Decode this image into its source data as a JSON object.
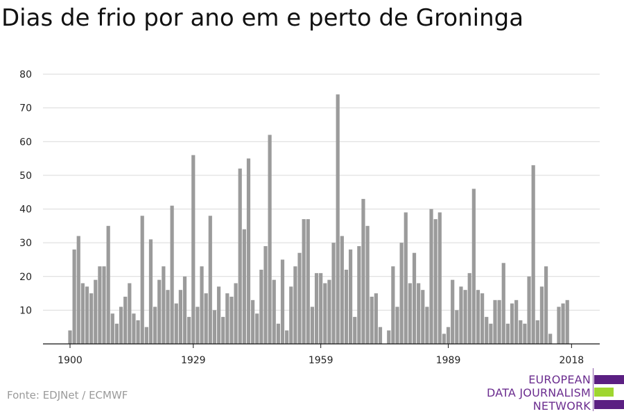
{
  "title": "Dias de frio por ano em e perto de Groninga",
  "source": "Fonte: EDJNet / ECMWF",
  "logo": {
    "lines": [
      "EUROPEAN",
      "DATA JOURNALISM",
      "NETWORK"
    ],
    "text_color": "#6b2d8f",
    "bar_colors": [
      "#5b1f82",
      "#9fd630",
      "#5b1f82"
    ]
  },
  "chart_data": {
    "type": "bar",
    "title": "Dias de frio por ano em e perto de Groninga",
    "xlabel": "",
    "ylabel": "",
    "x_start": 1900,
    "x_end": 2018,
    "x_ticks": [
      "1900",
      "1929",
      "1959",
      "1989",
      "2018"
    ],
    "y_ticks": [
      "10",
      "20",
      "30",
      "40",
      "50",
      "60",
      "70",
      "80"
    ],
    "ylim": [
      0,
      80
    ],
    "grid": true,
    "bar_color": "#9b9b9b",
    "values": [
      4,
      28,
      32,
      18,
      17,
      15,
      19,
      23,
      23,
      35,
      9,
      6,
      11,
      14,
      18,
      9,
      7,
      38,
      5,
      31,
      11,
      19,
      23,
      16,
      41,
      12,
      16,
      20,
      8,
      56,
      11,
      23,
      15,
      38,
      10,
      17,
      8,
      15,
      14,
      18,
      52,
      34,
      55,
      13,
      9,
      22,
      29,
      62,
      19,
      6,
      25,
      4,
      17,
      23,
      27,
      37,
      37,
      11,
      21,
      21,
      18,
      19,
      30,
      74,
      32,
      22,
      28,
      8,
      29,
      43,
      35,
      14,
      15,
      5,
      0,
      4,
      23,
      11,
      30,
      39,
      18,
      27,
      18,
      16,
      11,
      40,
      37,
      39,
      3,
      5,
      19,
      10,
      17,
      16,
      21,
      46,
      16,
      15,
      8,
      6,
      13,
      13,
      24,
      6,
      12,
      13,
      7,
      6,
      20,
      53,
      7,
      17,
      23,
      3,
      0,
      11,
      12,
      13
    ]
  }
}
